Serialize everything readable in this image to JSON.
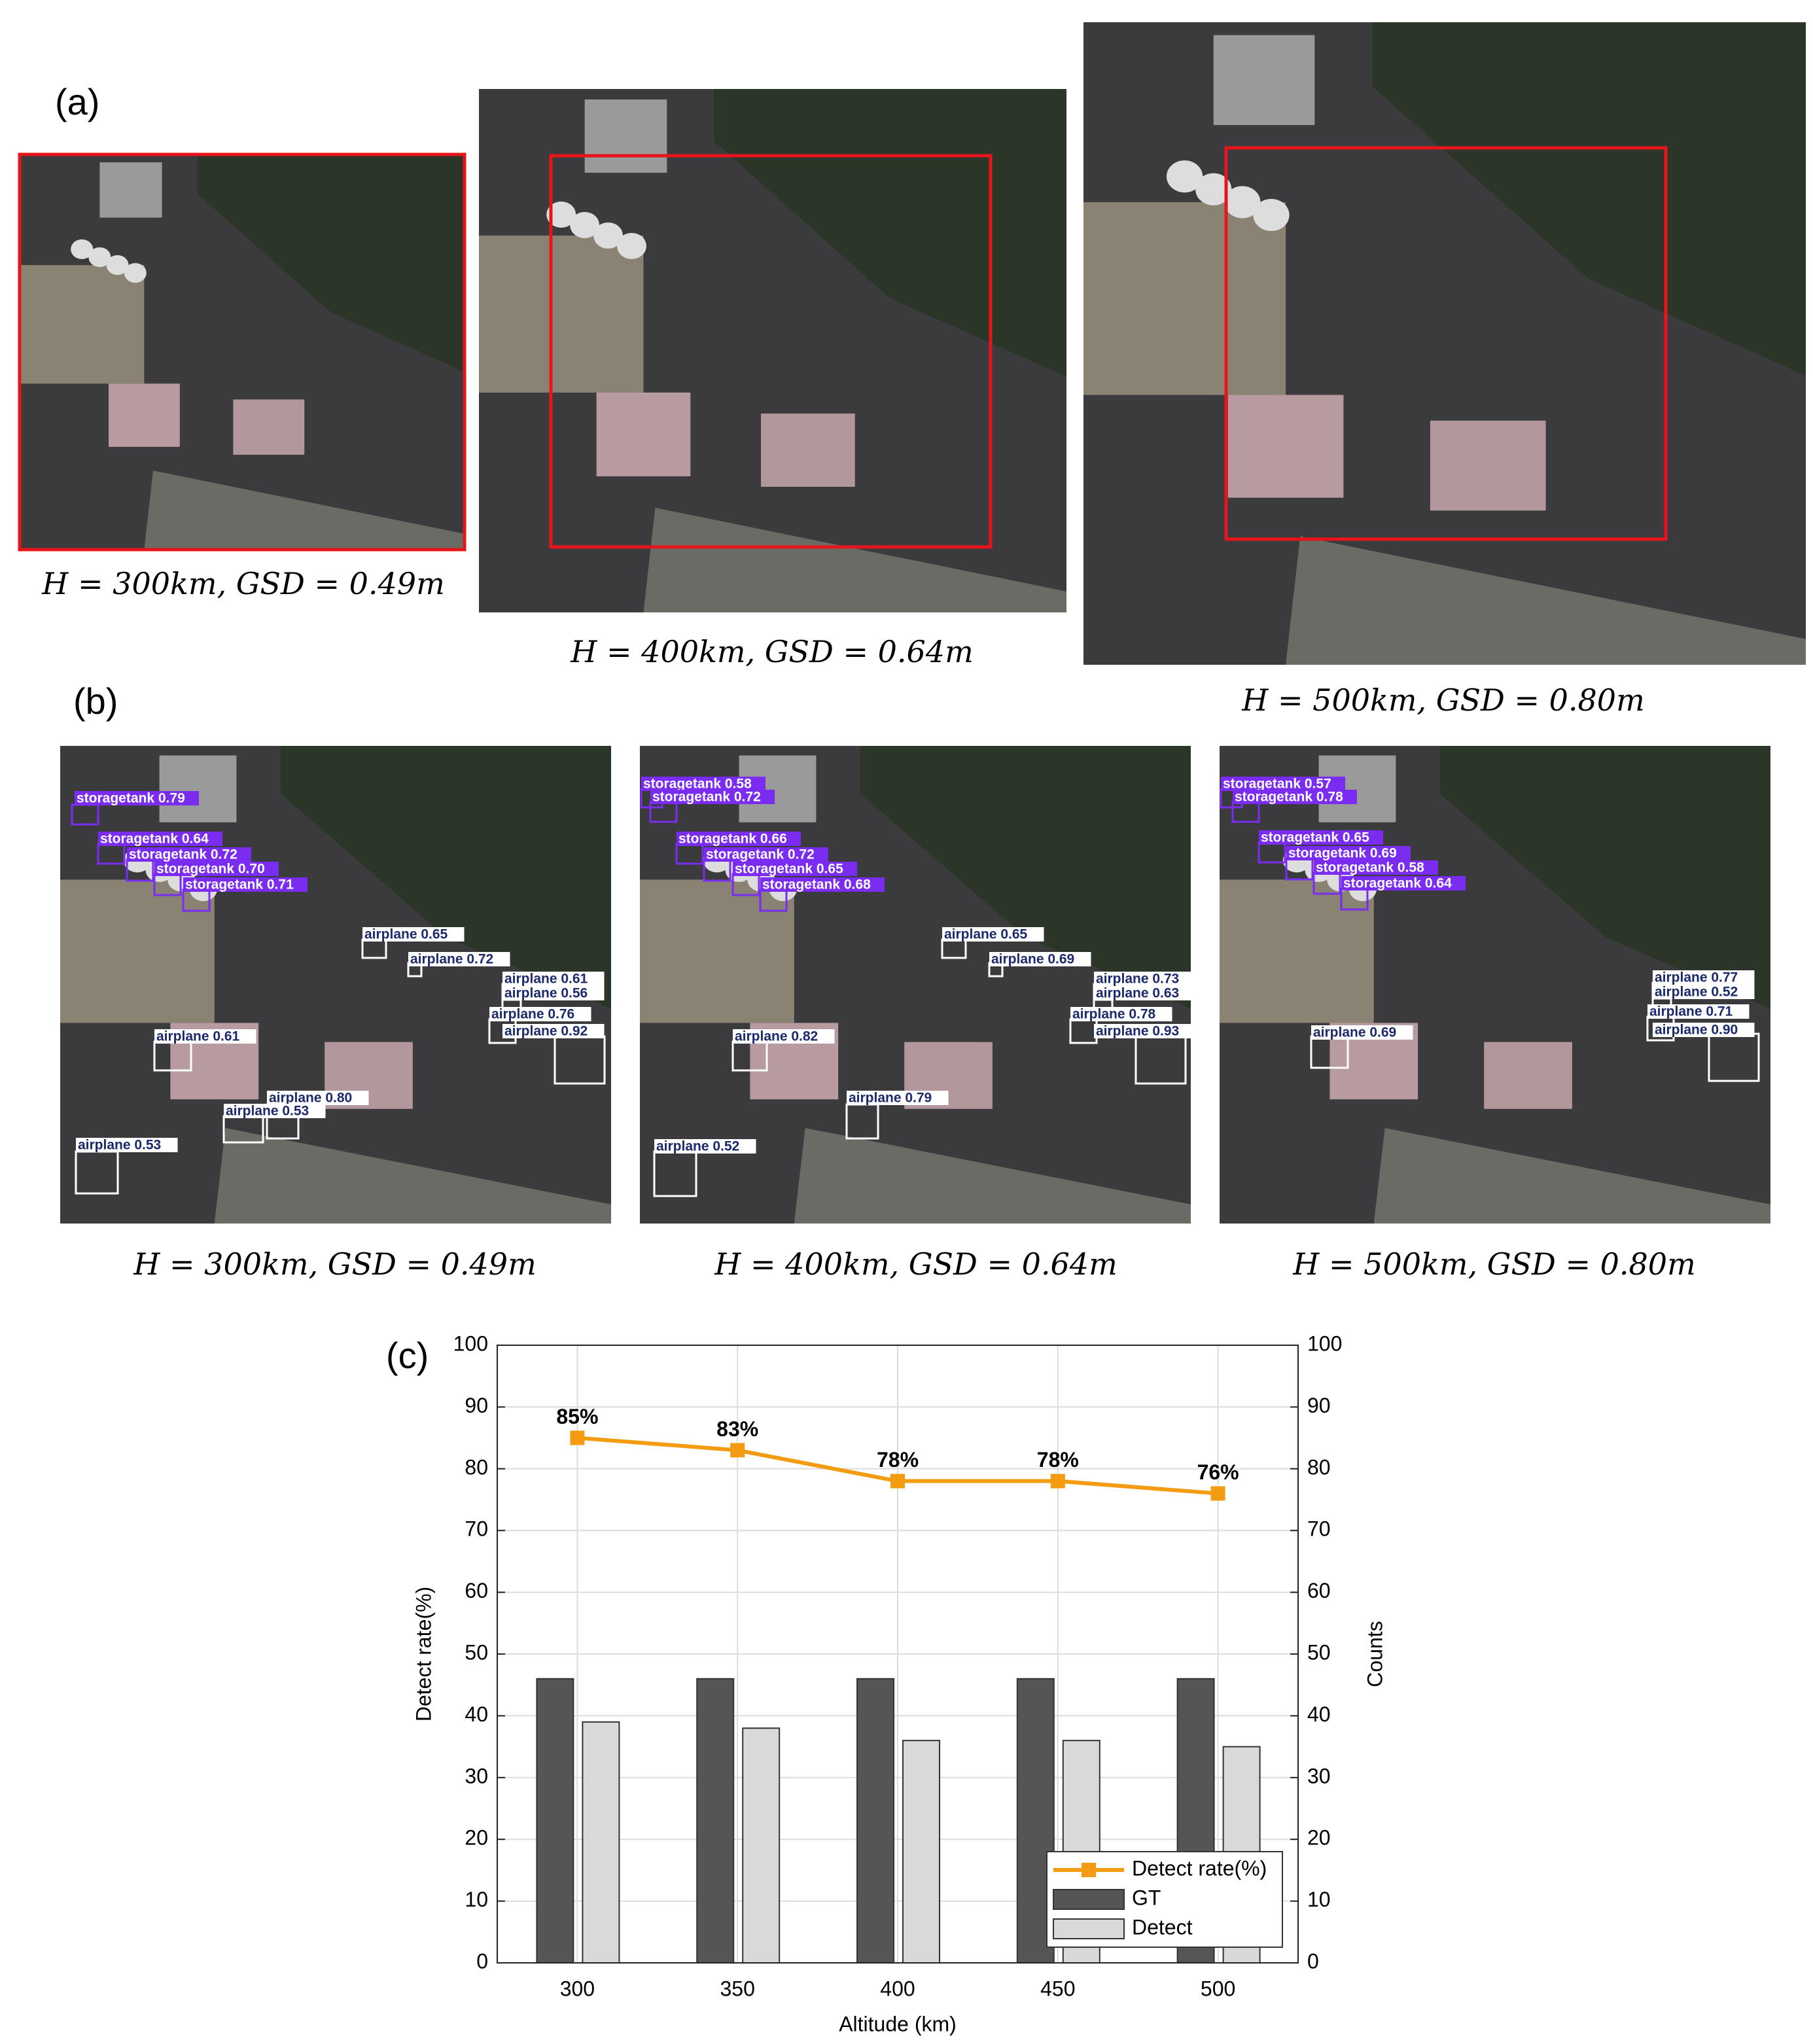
{
  "panel_a": {
    "label": "(a)",
    "captions": [
      "H = 300km, GSD = 0.49m",
      "H = 400km, GSD = 0.64m",
      "H = 500km, GSD = 0.80m"
    ]
  },
  "panel_b": {
    "label": "(b)",
    "captions": [
      "H = 300km, GSD = 0.49m",
      "H = 400km, GSD = 0.64m",
      "H = 500km, GSD = 0.80m"
    ],
    "detections": [
      [
        "storagetank 0.79",
        "storagetank 0.64",
        "storagetank 0.72",
        "storagetank 0.70",
        "storagetank 0.71",
        "airplane 0.65",
        "airplane 0.72",
        "airplane 0.61",
        "airplane 0.56",
        "airplane 0.76",
        "airplane 0.92",
        "airplane 0.61",
        "airplane 0.80",
        "airplane 0.53",
        "airplane 0.53"
      ],
      [
        "storagetank 0.58",
        "storagetank 0.72",
        "storagetank 0.66",
        "storagetank 0.72",
        "storagetank 0.65",
        "storagetank 0.68",
        "airplane 0.65",
        "airplane 0.69",
        "airplane 0.73",
        "airplane 0.63",
        "airplane 0.78",
        "airplane 0.93",
        "airplane 0.82",
        "airplane 0.79",
        "airplane 0.52"
      ],
      [
        "storagetank 0.57",
        "storagetank 0.78",
        "storagetank 0.65",
        "storagetank 0.69",
        "storagetank 0.58",
        "storagetank 0.64",
        "airplane 0.77",
        "airplane 0.52",
        "airplane 0.71",
        "airplane 0.90",
        "airplane 0.69"
      ]
    ]
  },
  "chart_data": {
    "type": "bar",
    "label": "(c)",
    "categories": [
      "300",
      "350",
      "400",
      "450",
      "500"
    ],
    "xlabel": "Altitude (km)",
    "ylabel": "Detect rate(%)",
    "y2label": "Counts",
    "series": [
      {
        "name": "Detect rate(%)",
        "type": "line",
        "color": "#f39c12",
        "values": [
          85,
          83,
          78,
          78,
          76
        ],
        "value_labels": [
          "85%",
          "83%",
          "78%",
          "78%",
          "76%"
        ]
      },
      {
        "name": "GT",
        "color": "#555555",
        "axis": "y2",
        "values": [
          46,
          46,
          46,
          46,
          46
        ]
      },
      {
        "name": "Detect",
        "color": "#d9d9d9",
        "axis": "y2",
        "values": [
          39,
          38,
          36,
          36,
          35
        ]
      }
    ],
    "ylim": [
      0,
      100
    ],
    "yticks": [
      0,
      10,
      20,
      30,
      40,
      50,
      60,
      70,
      80,
      90,
      100
    ],
    "y2lim": [
      0,
      100
    ],
    "y2ticks": [
      0,
      10,
      20,
      30,
      40,
      50,
      60,
      70,
      80,
      90,
      100
    ],
    "grid": true,
    "legend": "lower right"
  }
}
